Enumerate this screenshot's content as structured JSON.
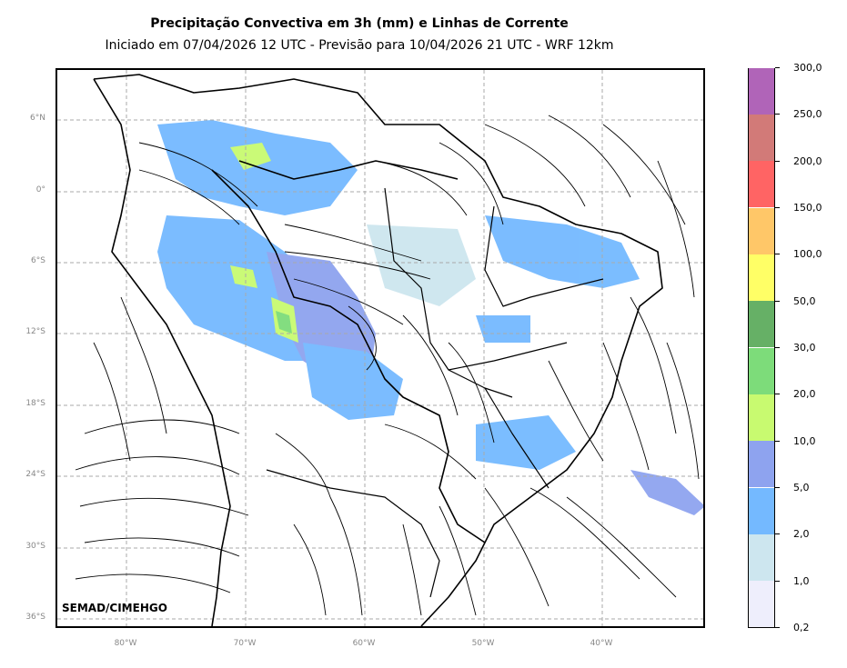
{
  "header": {
    "title": "Precipitação Convectiva em 3h (mm) e Linhas de Corrente",
    "subtitle": "Iniciado em 07/04/2026 12 UTC - Previsão para 10/04/2026 21 UTC - WRF 12km"
  },
  "axes": {
    "lat_labels": [
      "6°N",
      "0°",
      "6°S",
      "12°S",
      "18°S",
      "24°S",
      "30°S",
      "36°S"
    ],
    "lon_labels": [
      "80°W",
      "70°W",
      "60°W",
      "50°W",
      "40°W"
    ]
  },
  "credit": "SEMAD/CIMEHGO",
  "colorbar": {
    "labels": [
      "0,2",
      "1,0",
      "2,0",
      "5,0",
      "10,0",
      "20,0",
      "30,0",
      "50,0",
      "100,0",
      "150,0",
      "200,0",
      "250,0",
      "300,0"
    ],
    "colors": [
      "#eeeefc",
      "#cde6ef",
      "#74b9ff",
      "#8ea3ef",
      "#c8fa70",
      "#7ddc7a",
      "#66b066",
      "#ffff66",
      "#ffc768",
      "#ff6464",
      "#d27a78",
      "#b064b8"
    ]
  },
  "colors": {
    "grid": "#aaaaaa",
    "border": "#000000",
    "streamline": "#000000"
  }
}
